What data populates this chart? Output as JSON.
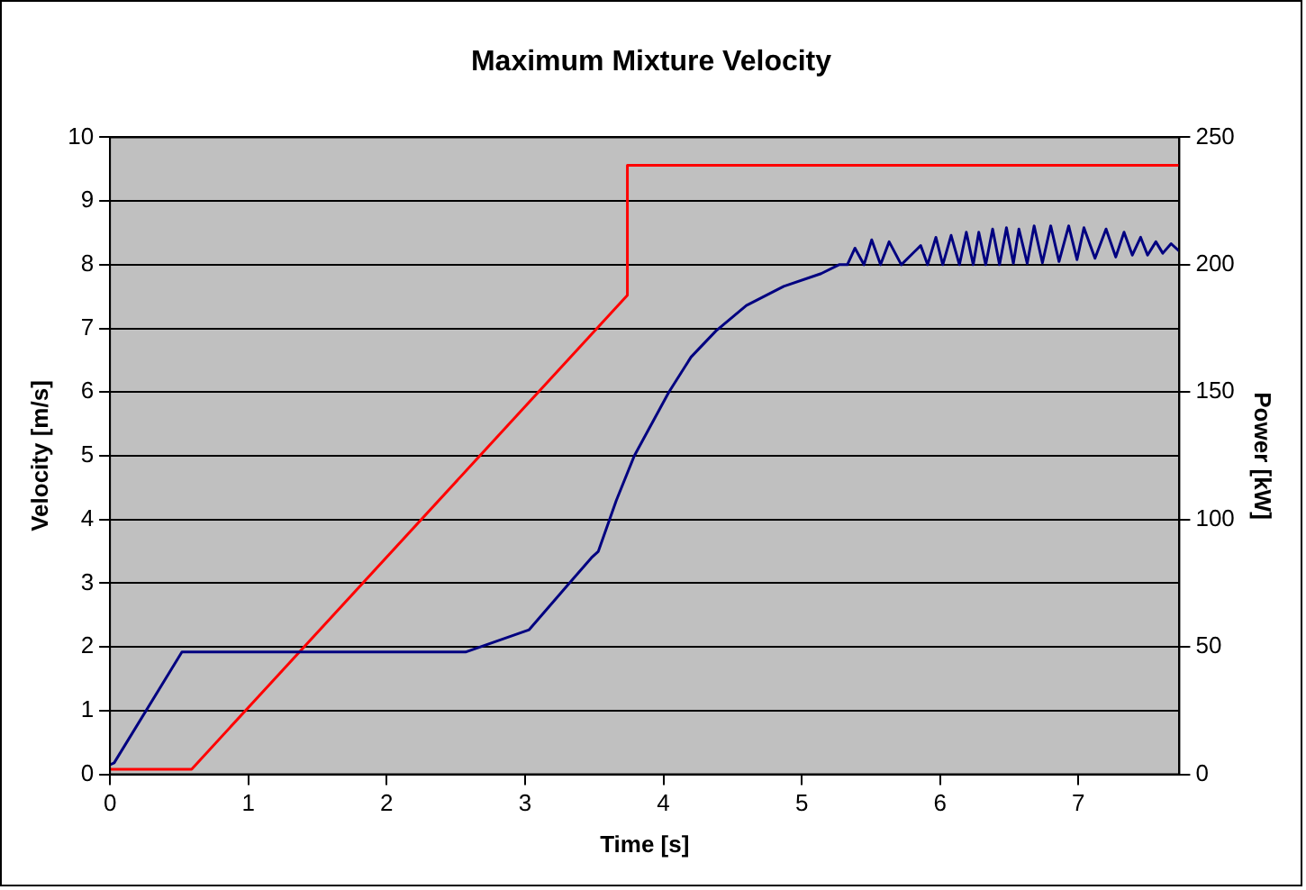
{
  "chart_data": {
    "type": "line",
    "title": "Maximum Mixture Velocity",
    "xlabel": "Time [s]",
    "ylabel": "Velocity [m/s]",
    "y2label": "Power [kW]",
    "xlim": [
      0,
      7.73
    ],
    "xticks": [
      0,
      1,
      2,
      3,
      4,
      5,
      6,
      7
    ],
    "ylim": [
      0,
      10
    ],
    "yticks": [
      0,
      1,
      2,
      3,
      4,
      5,
      6,
      7,
      8,
      9,
      10
    ],
    "y2lim": [
      0,
      250
    ],
    "y2ticks": [
      0,
      50,
      100,
      150,
      200,
      250
    ],
    "grid": "y",
    "legend": false,
    "series": [
      {
        "color": "#000080",
        "x": [
          0,
          0.03,
          0.52,
          2.57,
          3.03,
          3.3,
          3.48,
          3.53,
          3.66,
          3.79,
          4.04,
          4.2,
          4.38,
          4.6,
          4.87,
          5.14,
          5.27,
          5.33,
          5.385,
          5.45,
          5.506,
          5.57,
          5.632,
          5.72,
          5.86,
          5.91,
          5.97,
          6.02,
          6.08,
          6.14,
          6.19,
          6.24,
          6.28,
          6.33,
          6.38,
          6.43,
          6.48,
          6.53,
          6.57,
          6.63,
          6.68,
          6.74,
          6.8,
          6.86,
          6.93,
          6.99,
          7.04,
          7.12,
          7.2,
          7.27,
          7.33,
          7.39,
          7.45,
          7.5,
          7.56,
          7.61,
          7.67,
          7.73
        ],
        "values": [
          0.15,
          0.18,
          1.92,
          1.92,
          2.27,
          2.95,
          3.4,
          3.5,
          4.3,
          5.0,
          6.0,
          6.55,
          6.96,
          7.36,
          7.66,
          7.86,
          8.0,
          8.0,
          8.26,
          8.0,
          8.39,
          8.0,
          8.36,
          8.0,
          8.3,
          8.0,
          8.43,
          8.0,
          8.46,
          8.0,
          8.51,
          8.0,
          8.51,
          8.0,
          8.56,
          8.0,
          8.58,
          8.02,
          8.56,
          8.02,
          8.61,
          8.03,
          8.61,
          8.05,
          8.61,
          8.08,
          8.58,
          8.1,
          8.56,
          8.12,
          8.51,
          8.15,
          8.43,
          8.15,
          8.36,
          8.18,
          8.33,
          8.21
        ]
      },
      {
        "color": "#ff0000",
        "axis": "y2",
        "x": [
          0,
          0.59,
          3.74,
          3.74,
          7.73
        ],
        "values": [
          2,
          2,
          188,
          239,
          239
        ]
      }
    ]
  }
}
